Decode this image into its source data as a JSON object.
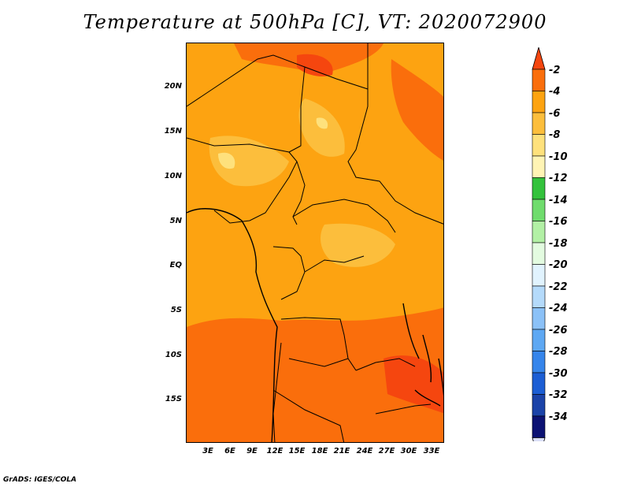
{
  "title": "Temperature at 500hPa [C], VT: 2020072900",
  "credit": "GrADS: IGES/COLA",
  "map": {
    "lat_labels": [
      "20N",
      "15N",
      "10N",
      "5N",
      "EQ",
      "5S",
      "10S",
      "15S"
    ],
    "lon_labels": [
      "3E",
      "6E",
      "9E",
      "12E",
      "15E",
      "18E",
      "21E",
      "24E",
      "27E",
      "30E",
      "33E"
    ]
  },
  "colorbar": {
    "labels": [
      "-2",
      "-4",
      "-6",
      "-8",
      "-10",
      "-12",
      "-14",
      "-16",
      "-18",
      "-20",
      "-22",
      "-24",
      "-26",
      "-28",
      "-30",
      "-32",
      "-34"
    ],
    "colors": [
      "#f5460f",
      "#fa6e0c",
      "#fda311",
      "#fcbe3c",
      "#fee17c",
      "#fff4b4",
      "#33c23c",
      "#6fdc6d",
      "#b2f0a5",
      "#e3fbe0",
      "#e1f3fe",
      "#b4dafa",
      "#8bc1f7",
      "#5ea8f3",
      "#3685eb",
      "#1c5ed4",
      "#1b43a8",
      "#0c1273",
      "#dbe0f8"
    ]
  },
  "colors": {
    "ocean_warm": "#fda311",
    "land_hot": "#fa6e0c",
    "land_cool": "#fcbe3c",
    "land_cooler": "#fee17c",
    "border": "#000000"
  }
}
